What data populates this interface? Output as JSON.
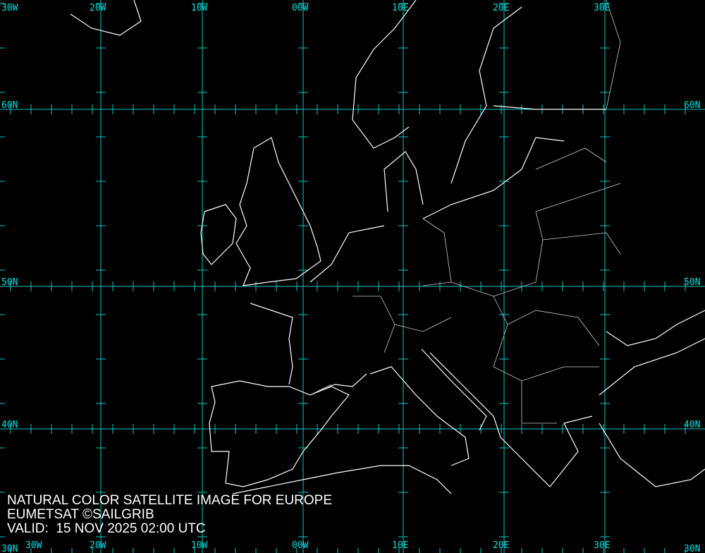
{
  "caption": {
    "title": "NATURAL COLOR SATELLITE IMAGE FOR EUROPE",
    "credit": "EUMETSAT ©SAILGRIB",
    "valid": "VALID:  15 NOV 2025 02:00 UTC"
  },
  "grid": {
    "longitudes": [
      "30W",
      "20W",
      "10W",
      "00W",
      "10E",
      "20E",
      "30E"
    ],
    "latitudes": [
      "60N",
      "50N",
      "40N",
      "30N"
    ]
  },
  "colors": {
    "background": "#000000",
    "grid": "#00c8c8",
    "labels": "#00e0e0",
    "coast": "#ffffff",
    "borders": "#cccccc"
  }
}
